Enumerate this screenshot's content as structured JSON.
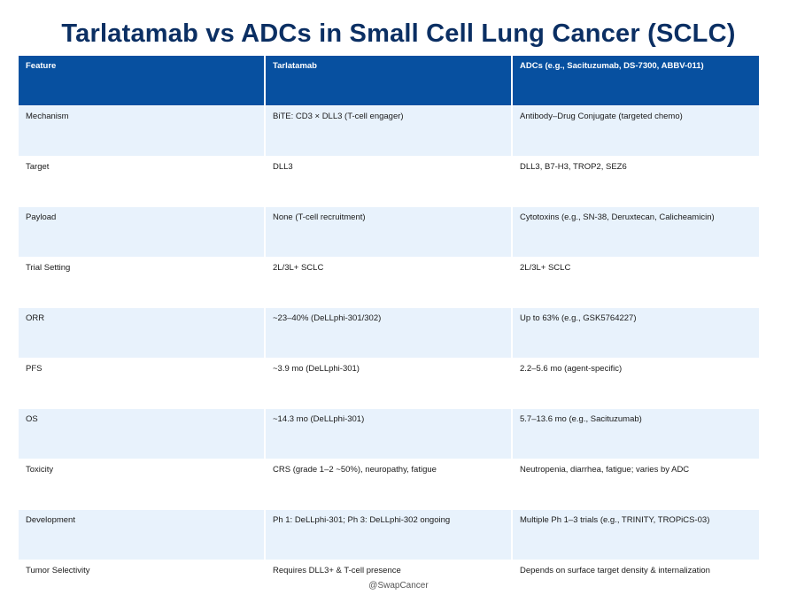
{
  "title": "Tarlatamab vs ADCs in Small Cell Lung Cancer (SCLC)",
  "table": {
    "headers": [
      "Feature",
      "Tarlatamab",
      "ADCs (e.g., Sacituzumab, DS-7300, ABBV-011)"
    ],
    "rows": [
      {
        "feature": "Mechanism",
        "tarlatamab": "BiTE: CD3 × DLL3 (T-cell engager)",
        "adcs": "Antibody–Drug Conjugate (targeted chemo)"
      },
      {
        "feature": "Target",
        "tarlatamab": "DLL3",
        "adcs": "DLL3, B7-H3, TROP2, SEZ6"
      },
      {
        "feature": "Payload",
        "tarlatamab": "None (T-cell recruitment)",
        "adcs": "Cytotoxins (e.g., SN-38, Deruxtecan, Calicheamicin)"
      },
      {
        "feature": "Trial Setting",
        "tarlatamab": "2L/3L+ SCLC",
        "adcs": "2L/3L+ SCLC"
      },
      {
        "feature": "ORR",
        "tarlatamab": "~23–40% (DeLLphi-301/302)",
        "adcs": "Up to 63% (e.g., GSK5764227)"
      },
      {
        "feature": "PFS",
        "tarlatamab": "~3.9 mo (DeLLphi-301)",
        "adcs": "2.2–5.6 mo (agent-specific)"
      },
      {
        "feature": "OS",
        "tarlatamab": "~14.3 mo (DeLLphi-301)",
        "adcs": "5.7–13.6 mo (e.g., Sacituzumab)"
      },
      {
        "feature": "Toxicity",
        "tarlatamab": "CRS (grade 1–2 ~50%), neuropathy, fatigue",
        "adcs": "Neutropenia, diarrhea, fatigue; varies by ADC"
      },
      {
        "feature": "Development",
        "tarlatamab": "Ph 1: DeLLphi-301; Ph 3: DeLLphi-302 ongoing",
        "adcs": "Multiple Ph 1–3 trials (e.g., TRINITY, TROPiCS-03)"
      },
      {
        "feature": "Tumor Selectivity",
        "tarlatamab": "Requires DLL3+ & T-cell presence",
        "adcs": "Depends on surface target density & internalization"
      }
    ]
  },
  "footer": "@SwapCancer",
  "colors": {
    "title": "#0b2f63",
    "header_bg": "#0750a0",
    "header_text": "#ffffff",
    "row_shade": "#e8f2fc",
    "row_plain": "#ffffff"
  }
}
